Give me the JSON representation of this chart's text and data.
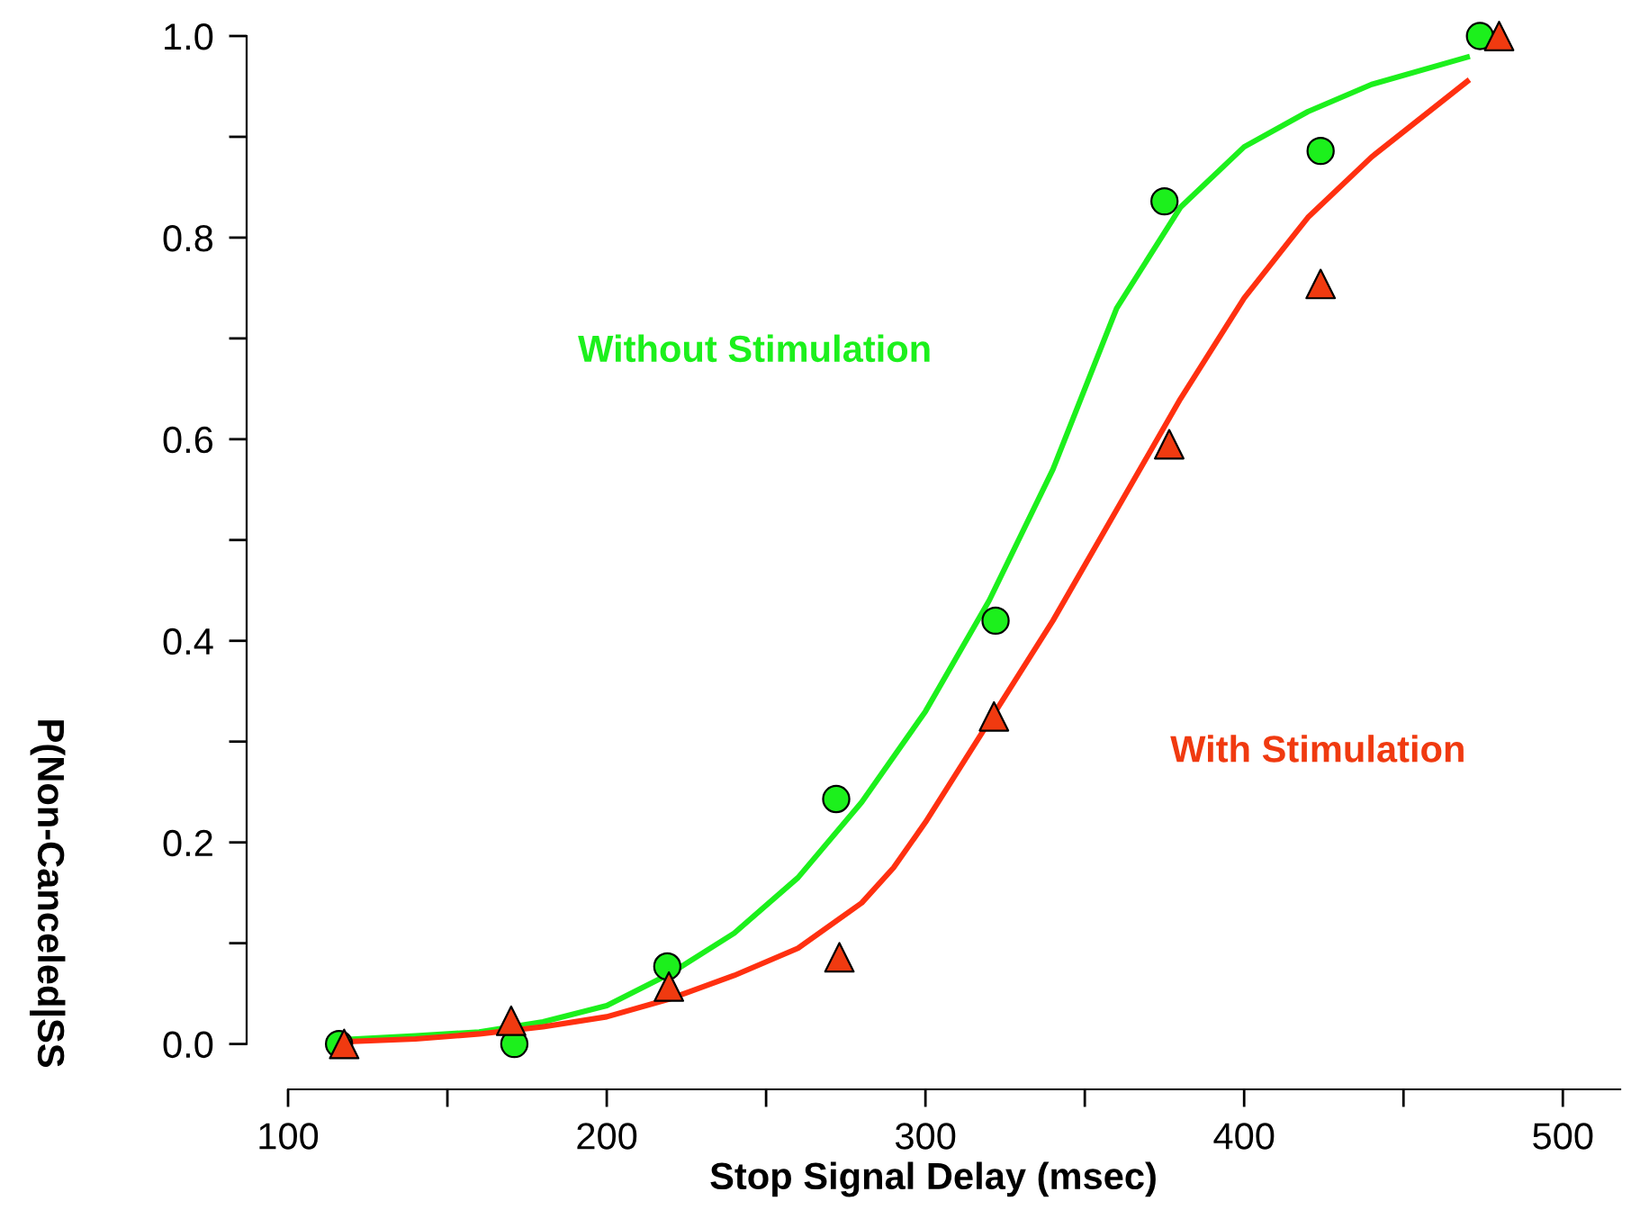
{
  "chart_data": {
    "type": "scatter",
    "xlabel": "Stop Signal Delay (msec)",
    "ylabel": "P(Non-Canceled|SS",
    "xlim": [
      87,
      518
    ],
    "ylim": [
      -0.045,
      1.0
    ],
    "xticks": [
      100,
      {
        "value": 150,
        "label": null
      },
      200,
      {
        "value": 250,
        "label": null
      },
      300,
      {
        "value": 350,
        "label": null
      },
      400,
      {
        "value": 450,
        "label": null
      },
      500
    ],
    "yticks": [
      {
        "value": 0,
        "label": "0.0"
      },
      {
        "value": 0.1,
        "label": null
      },
      {
        "value": 0.2,
        "label": "0.2"
      },
      {
        "value": 0.3,
        "label": null
      },
      {
        "value": 0.4,
        "label": "0.4"
      },
      {
        "value": 0.5,
        "label": null
      },
      {
        "value": 0.6,
        "label": "0.6"
      },
      {
        "value": 0.7,
        "label": null
      },
      {
        "value": 0.8,
        "label": "0.8"
      },
      {
        "value": 0.9,
        "label": null
      },
      {
        "value": 1,
        "label": "1.0"
      }
    ],
    "grid": false,
    "legend": false,
    "series": [
      {
        "type": "line",
        "color": "#1cf01c",
        "marker": "none",
        "line_style": "solid",
        "x": [
          116,
          140,
          160,
          180,
          200,
          220,
          240,
          260,
          280,
          300,
          320,
          340,
          360,
          380,
          400,
          420,
          440,
          470
        ],
        "values": [
          0.004,
          0.008,
          0.012,
          0.022,
          0.038,
          0.07,
          0.11,
          0.165,
          0.24,
          0.33,
          0.44,
          0.57,
          0.73,
          0.83,
          0.89,
          0.925,
          0.952,
          0.979
        ]
      },
      {
        "type": "line",
        "color": "#ff3010",
        "marker": "none",
        "line_style": "solid",
        "x": [
          116,
          140,
          160,
          180,
          200,
          220,
          240,
          260,
          280,
          290,
          300,
          320,
          340,
          360,
          380,
          400,
          420,
          440,
          470
        ],
        "values": [
          0.002,
          0.005,
          0.01,
          0.017,
          0.027,
          0.045,
          0.068,
          0.095,
          0.14,
          0.175,
          0.22,
          0.32,
          0.42,
          0.53,
          0.64,
          0.74,
          0.82,
          0.88,
          0.955
        ]
      },
      {
        "name": "Without Stimulation",
        "color": "#1cf01c",
        "marker": "circle",
        "x": [
          116,
          171,
          219,
          272,
          322,
          375,
          424,
          474
        ],
        "values": [
          0.0,
          0.0,
          0.077,
          0.243,
          0.42,
          0.836,
          0.886,
          1.0
        ]
      },
      {
        "name": "With Stimulation",
        "color": "#f03a10",
        "marker": "triangle",
        "x": [
          117.6,
          170,
          219.5,
          273,
          321.5,
          376.5,
          424,
          480
        ],
        "values": [
          0.0,
          0.023,
          0.057,
          0.086,
          0.325,
          0.595,
          0.754,
          1.0
        ]
      }
    ]
  }
}
